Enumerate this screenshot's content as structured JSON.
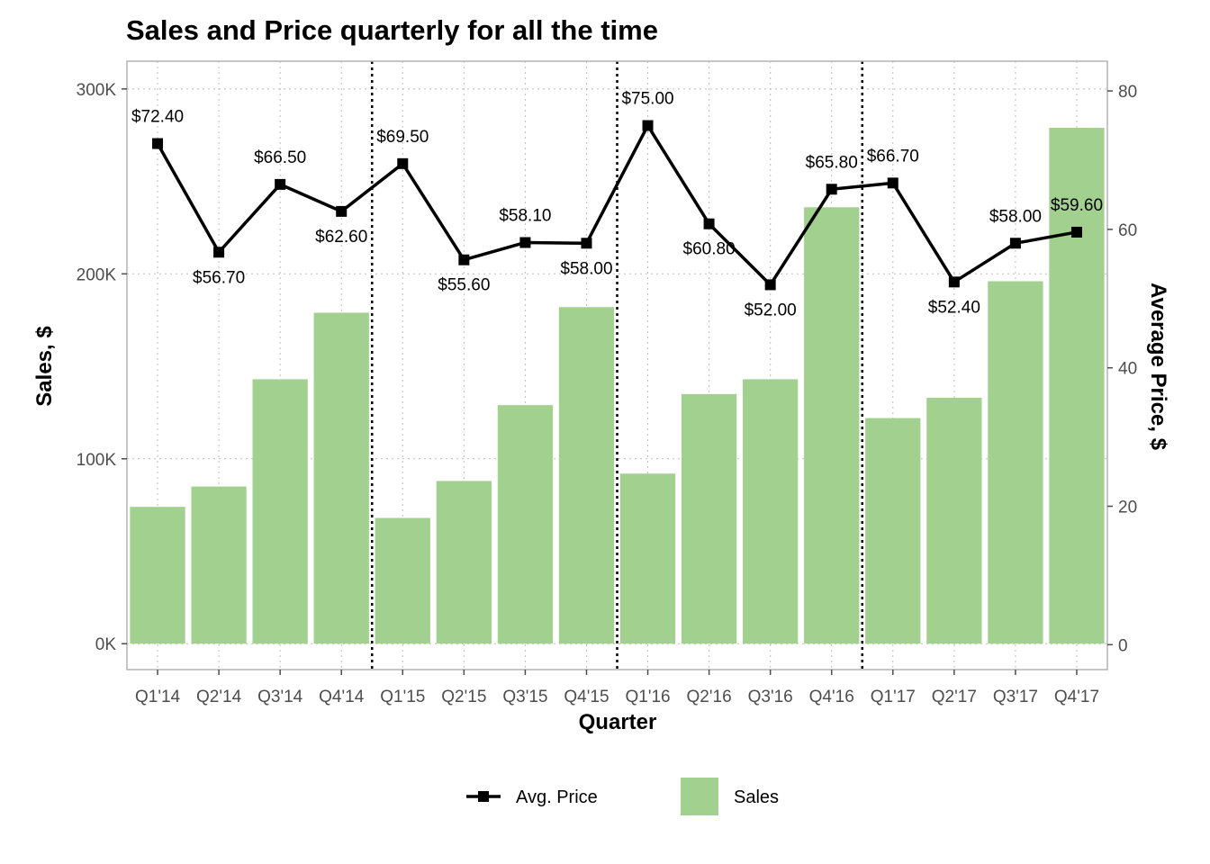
{
  "chart_data": {
    "type": "bar",
    "title": "Sales and Price quarterly for all the time",
    "xlabel": "Quarter",
    "ylabel": "Sales, $",
    "y2label": "Average Price, $",
    "categories": [
      "Q1'14",
      "Q2'14",
      "Q3'14",
      "Q4'14",
      "Q1'15",
      "Q2'15",
      "Q3'15",
      "Q4'15",
      "Q1'16",
      "Q2'16",
      "Q3'16",
      "Q4'16",
      "Q1'17",
      "Q2'17",
      "Q3'17",
      "Q4'17"
    ],
    "series": [
      {
        "name": "Sales",
        "type": "bar",
        "axis": "left",
        "color": "#a1d08f",
        "values": [
          74000,
          85000,
          143000,
          179000,
          68000,
          88000,
          129000,
          182000,
          92000,
          135000,
          143000,
          236000,
          122000,
          133000,
          196000,
          279000
        ]
      },
      {
        "name": "Avg. Price",
        "type": "line",
        "axis": "right",
        "color": "#000000",
        "marker": "square",
        "values": [
          72.4,
          56.7,
          66.5,
          62.6,
          69.5,
          55.6,
          58.1,
          58.0,
          75.0,
          60.8,
          52.0,
          65.8,
          66.7,
          52.4,
          58.0,
          59.6
        ],
        "labels": [
          "$72.40",
          "$56.70",
          "$66.50",
          "$62.60",
          "$69.50",
          "$55.60",
          "$58.10",
          "$58.00",
          "$75.00",
          "$60.80",
          "$52.00",
          "$65.80",
          "$66.70",
          "$52.40",
          "$58.00",
          "$59.60"
        ]
      }
    ],
    "y_ticks": [
      0,
      100000,
      200000,
      300000
    ],
    "y_tick_labels": [
      "0K",
      "100K",
      "200K",
      "300K"
    ],
    "ylim": [
      -14000,
      315000
    ],
    "y2_ticks": [
      0,
      20,
      40,
      60,
      80
    ],
    "y2_tick_labels": [
      "0",
      "20",
      "40",
      "60",
      "80"
    ],
    "y2lim": [
      -3.6,
      84.3
    ],
    "year_separators": [
      4,
      8,
      12
    ],
    "legend": {
      "position": "bottom",
      "items": [
        "Avg. Price",
        "Sales"
      ]
    },
    "grid": true
  }
}
